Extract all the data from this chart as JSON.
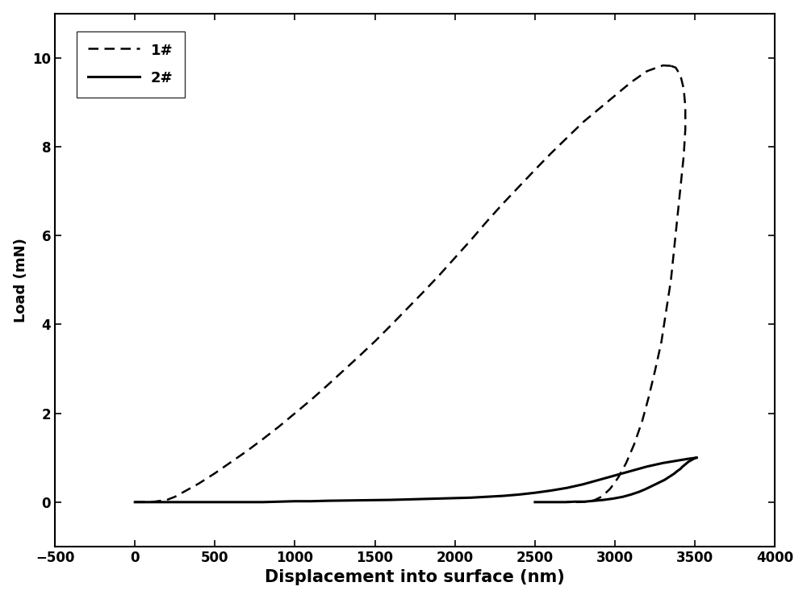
{
  "title": "",
  "xlabel": "Displacement into surface (nm)",
  "ylabel": "Load (mN)",
  "xlim": [
    -500,
    4000
  ],
  "ylim": [
    -1.0,
    11.0
  ],
  "xticks": [
    -500,
    0,
    500,
    1000,
    1500,
    2000,
    2500,
    3000,
    3500,
    4000
  ],
  "yticks": [
    0,
    2,
    4,
    6,
    8,
    10
  ],
  "background_color": "#ffffff",
  "curve1_load_x": [
    0,
    100,
    200,
    250,
    300,
    400,
    500,
    600,
    700,
    800,
    900,
    1000,
    1100,
    1200,
    1300,
    1400,
    1500,
    1600,
    1700,
    1800,
    1900,
    2000,
    2100,
    2200,
    2300,
    2400,
    2500,
    2600,
    2700,
    2800,
    2900,
    3000,
    3100,
    3200,
    3300,
    3350
  ],
  "curve1_load_y": [
    0,
    0.0,
    0.05,
    0.12,
    0.22,
    0.42,
    0.65,
    0.9,
    1.15,
    1.42,
    1.7,
    2.0,
    2.3,
    2.62,
    2.95,
    3.28,
    3.62,
    3.98,
    4.35,
    4.72,
    5.1,
    5.5,
    5.9,
    6.32,
    6.72,
    7.1,
    7.48,
    7.85,
    8.2,
    8.55,
    8.85,
    9.15,
    9.45,
    9.7,
    9.83,
    9.82
  ],
  "curve1_unload_x": [
    3350,
    3380,
    3410,
    3430,
    3440,
    3440,
    3430,
    3410,
    3390,
    3370,
    3350,
    3320,
    3290,
    3250,
    3210,
    3170,
    3120,
    3070,
    3020,
    2970,
    2920,
    2870,
    2820,
    2780,
    2750,
    2720,
    2700
  ],
  "curve1_unload_y": [
    9.82,
    9.78,
    9.6,
    9.3,
    8.9,
    8.4,
    7.8,
    7.1,
    6.4,
    5.7,
    5.0,
    4.3,
    3.6,
    2.95,
    2.35,
    1.82,
    1.3,
    0.88,
    0.55,
    0.3,
    0.13,
    0.04,
    0.01,
    0.0,
    0.0,
    0.0,
    0.0
  ],
  "curve2_load_x": [
    0,
    200,
    400,
    600,
    700,
    800,
    900,
    1000,
    1100,
    1200,
    1400,
    1600,
    1800,
    2000,
    2100,
    2200,
    2300,
    2400,
    2500,
    2600,
    2700,
    2800,
    2900,
    3000,
    3100,
    3200,
    3300,
    3400,
    3450,
    3490,
    3510
  ],
  "curve2_load_y": [
    0,
    0.0,
    0.0,
    0.0,
    0.0,
    0.0,
    0.01,
    0.02,
    0.02,
    0.03,
    0.04,
    0.05,
    0.07,
    0.09,
    0.1,
    0.12,
    0.14,
    0.17,
    0.21,
    0.26,
    0.32,
    0.4,
    0.5,
    0.6,
    0.7,
    0.8,
    0.88,
    0.94,
    0.97,
    0.99,
    1.0
  ],
  "curve2_unload_x": [
    3510,
    3500,
    3490,
    3480,
    3470,
    3460,
    3450,
    3440,
    3430,
    3420,
    3410,
    3390,
    3370,
    3340,
    3310,
    3270,
    3230,
    3190,
    3150,
    3100,
    3050,
    2990,
    2930,
    2870,
    2810,
    2750,
    2690,
    2640,
    2600,
    2560,
    2530,
    2500
  ],
  "curve2_unload_y": [
    1.0,
    0.99,
    0.97,
    0.95,
    0.93,
    0.91,
    0.88,
    0.85,
    0.82,
    0.79,
    0.75,
    0.7,
    0.64,
    0.57,
    0.5,
    0.43,
    0.36,
    0.29,
    0.23,
    0.17,
    0.12,
    0.08,
    0.05,
    0.03,
    0.01,
    0.01,
    0.0,
    0.0,
    0.0,
    0.0,
    0.0,
    0.0
  ],
  "color": "#000000",
  "linewidth1": 1.8,
  "linewidth2": 2.2,
  "legend_labels": [
    "1#",
    "2#"
  ],
  "xlabel_fontsize": 15,
  "ylabel_fontsize": 13,
  "tick_fontsize": 12,
  "legend_fontsize": 13
}
